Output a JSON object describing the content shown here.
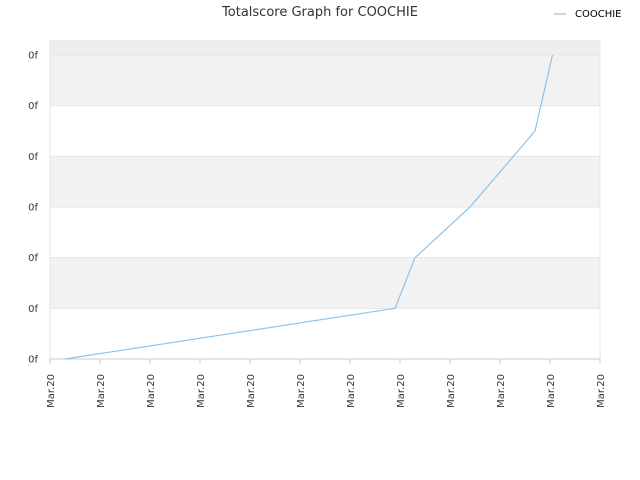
{
  "chart_data": {
    "type": "line",
    "title": "Totalscore Graph for COOCHIE",
    "xlabel": "",
    "ylabel": "",
    "legend_position": "top-right",
    "grid": true,
    "x_tick_labels": [
      "Mar.20",
      "Mar.20",
      "Mar.20",
      "Mar.20",
      "Mar.20",
      "Mar.20",
      "Mar.20",
      "Mar.20",
      "Mar.20",
      "Mar.20",
      "Mar.20",
      "Mar.20"
    ],
    "y_tick_labels": [
      "0f",
      "0f",
      "0f",
      "0f",
      "0f",
      "0f",
      "0f"
    ],
    "x_range": [
      0,
      11
    ],
    "y_range": [
      0,
      6
    ],
    "series": [
      {
        "name": "COOCHIE",
        "color": "#8ec3ea",
        "points": [
          {
            "x": 0.3,
            "y": 0
          },
          {
            "x": 6.9,
            "y": 1
          },
          {
            "x": 7.3,
            "y": 2
          },
          {
            "x": 8.4,
            "y": 3
          },
          {
            "x": 9.7,
            "y": 4.5
          },
          {
            "x": 10.05,
            "y": 6
          }
        ]
      }
    ]
  },
  "colors": {
    "band_fill": "#f2f2f2",
    "top_band_fill": "#eeeeee",
    "grid_line": "#e6e6e6",
    "axis_line": "#cccccc"
  }
}
